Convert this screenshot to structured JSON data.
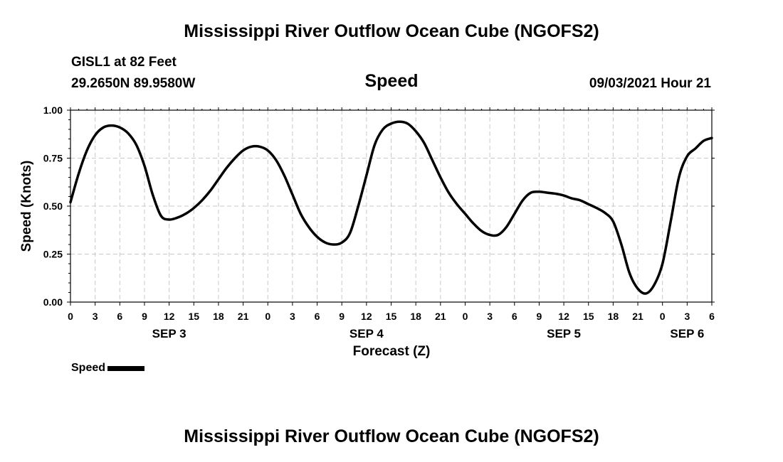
{
  "header": {
    "title_top": "Mississippi River Outflow Ocean Cube (NGOFS2)",
    "station": "GISL1 at 82 Feet",
    "coords": "29.2650N  89.9580W",
    "plot_title": "Speed",
    "datetime": "09/03/2021 Hour 21",
    "title_bottom": "Mississippi River Outflow Ocean Cube (NGOFS2)"
  },
  "legend": {
    "label": "Speed",
    "color": "#000000"
  },
  "chart_data": {
    "type": "line",
    "xlabel": "Forecast (Z)",
    "ylabel": "Speed (Knots)",
    "xlim": [
      0,
      78
    ],
    "ylim": [
      0,
      1.0
    ],
    "grid": true,
    "y_ticks": [
      "0.00",
      "0.25",
      "0.50",
      "0.75",
      "1.00"
    ],
    "x_tick_labels": [
      "0",
      "3",
      "6",
      "9",
      "12",
      "15",
      "18",
      "21",
      "0",
      "3",
      "6",
      "9",
      "12",
      "15",
      "18",
      "21",
      "0",
      "3",
      "6",
      "9",
      "12",
      "15",
      "18",
      "21",
      "0",
      "3",
      "6"
    ],
    "day_labels": [
      {
        "label": "SEP 3",
        "hour": 12
      },
      {
        "label": "SEP 4",
        "hour": 36
      },
      {
        "label": "SEP 5",
        "hour": 60
      },
      {
        "label": "SEP 6",
        "hour": 75
      }
    ],
    "series": [
      {
        "name": "Speed",
        "color": "#000000",
        "x": [
          0,
          1,
          2,
          3,
          4,
          5,
          6,
          7,
          8,
          9,
          10,
          11,
          12,
          13,
          14,
          15,
          16,
          17,
          18,
          19,
          20,
          21,
          22,
          23,
          24,
          25,
          26,
          27,
          28,
          29,
          30,
          31,
          32,
          33,
          34,
          35,
          36,
          37,
          38,
          39,
          40,
          41,
          42,
          43,
          44,
          45,
          46,
          47,
          48,
          49,
          50,
          51,
          52,
          53,
          54,
          55,
          56,
          57,
          58,
          59,
          60,
          61,
          62,
          63,
          64,
          65,
          66,
          67,
          68,
          69,
          70,
          71,
          72,
          73,
          74,
          75,
          76,
          77,
          78
        ],
        "y": [
          0.52,
          0.67,
          0.79,
          0.87,
          0.91,
          0.92,
          0.91,
          0.88,
          0.82,
          0.71,
          0.56,
          0.45,
          0.43,
          0.44,
          0.46,
          0.49,
          0.53,
          0.58,
          0.64,
          0.7,
          0.75,
          0.79,
          0.81,
          0.81,
          0.79,
          0.74,
          0.66,
          0.56,
          0.46,
          0.39,
          0.34,
          0.31,
          0.3,
          0.31,
          0.36,
          0.5,
          0.66,
          0.82,
          0.9,
          0.93,
          0.94,
          0.93,
          0.89,
          0.83,
          0.74,
          0.65,
          0.57,
          0.51,
          0.46,
          0.41,
          0.37,
          0.35,
          0.35,
          0.39,
          0.46,
          0.53,
          0.57,
          0.575,
          0.57,
          0.565,
          0.555,
          0.54,
          0.53,
          0.51,
          0.49,
          0.465,
          0.42,
          0.3,
          0.15,
          0.07,
          0.045,
          0.09,
          0.2,
          0.42,
          0.65,
          0.76,
          0.8,
          0.84,
          0.855
        ]
      }
    ]
  }
}
